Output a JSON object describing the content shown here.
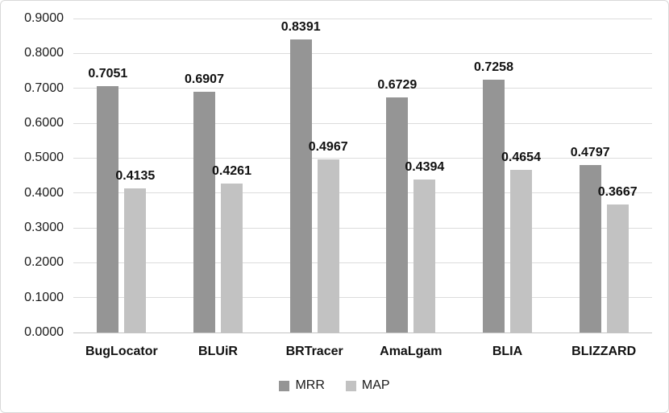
{
  "chart_data": {
    "type": "bar",
    "title": "",
    "xlabel": "",
    "ylabel": "",
    "categories": [
      "BugLocator",
      "BLUiR",
      "BRTracer",
      "AmaLgam",
      "BLIA",
      "BLIZZARD"
    ],
    "series": [
      {
        "name": "MRR",
        "color": "#959595",
        "values": [
          0.7051,
          0.6907,
          0.8391,
          0.6729,
          0.7258,
          0.4797
        ]
      },
      {
        "name": "MAP",
        "color": "#c2c2c2",
        "values": [
          0.4135,
          0.4261,
          0.4967,
          0.4394,
          0.4654,
          0.3667
        ]
      }
    ],
    "value_labels": [
      [
        "0.7051",
        "0.6907",
        "0.8391",
        "0.6729",
        "0.7258",
        "0.4797"
      ],
      [
        "0.4135",
        "0.4261",
        "0.4967",
        "0.4394",
        "0.4654",
        "0.3667"
      ]
    ],
    "ylim": [
      0,
      0.9
    ],
    "ytick_step": 0.1,
    "ytick_labels": [
      "0.0000",
      "0.1000",
      "0.2000",
      "0.3000",
      "0.4000",
      "0.5000",
      "0.6000",
      "0.7000",
      "0.8000",
      "0.9000"
    ],
    "grid": true,
    "legend_position": "bottom",
    "legend_entries": [
      "MRR",
      "MAP"
    ]
  },
  "colors": {
    "frame_border": "#d9d9d9",
    "gridline": "#dcdcdc",
    "axis_line": "#c4c4c4",
    "text": "#1a1a1a",
    "series_mrr": "#959595",
    "series_map": "#c2c2c2"
  }
}
